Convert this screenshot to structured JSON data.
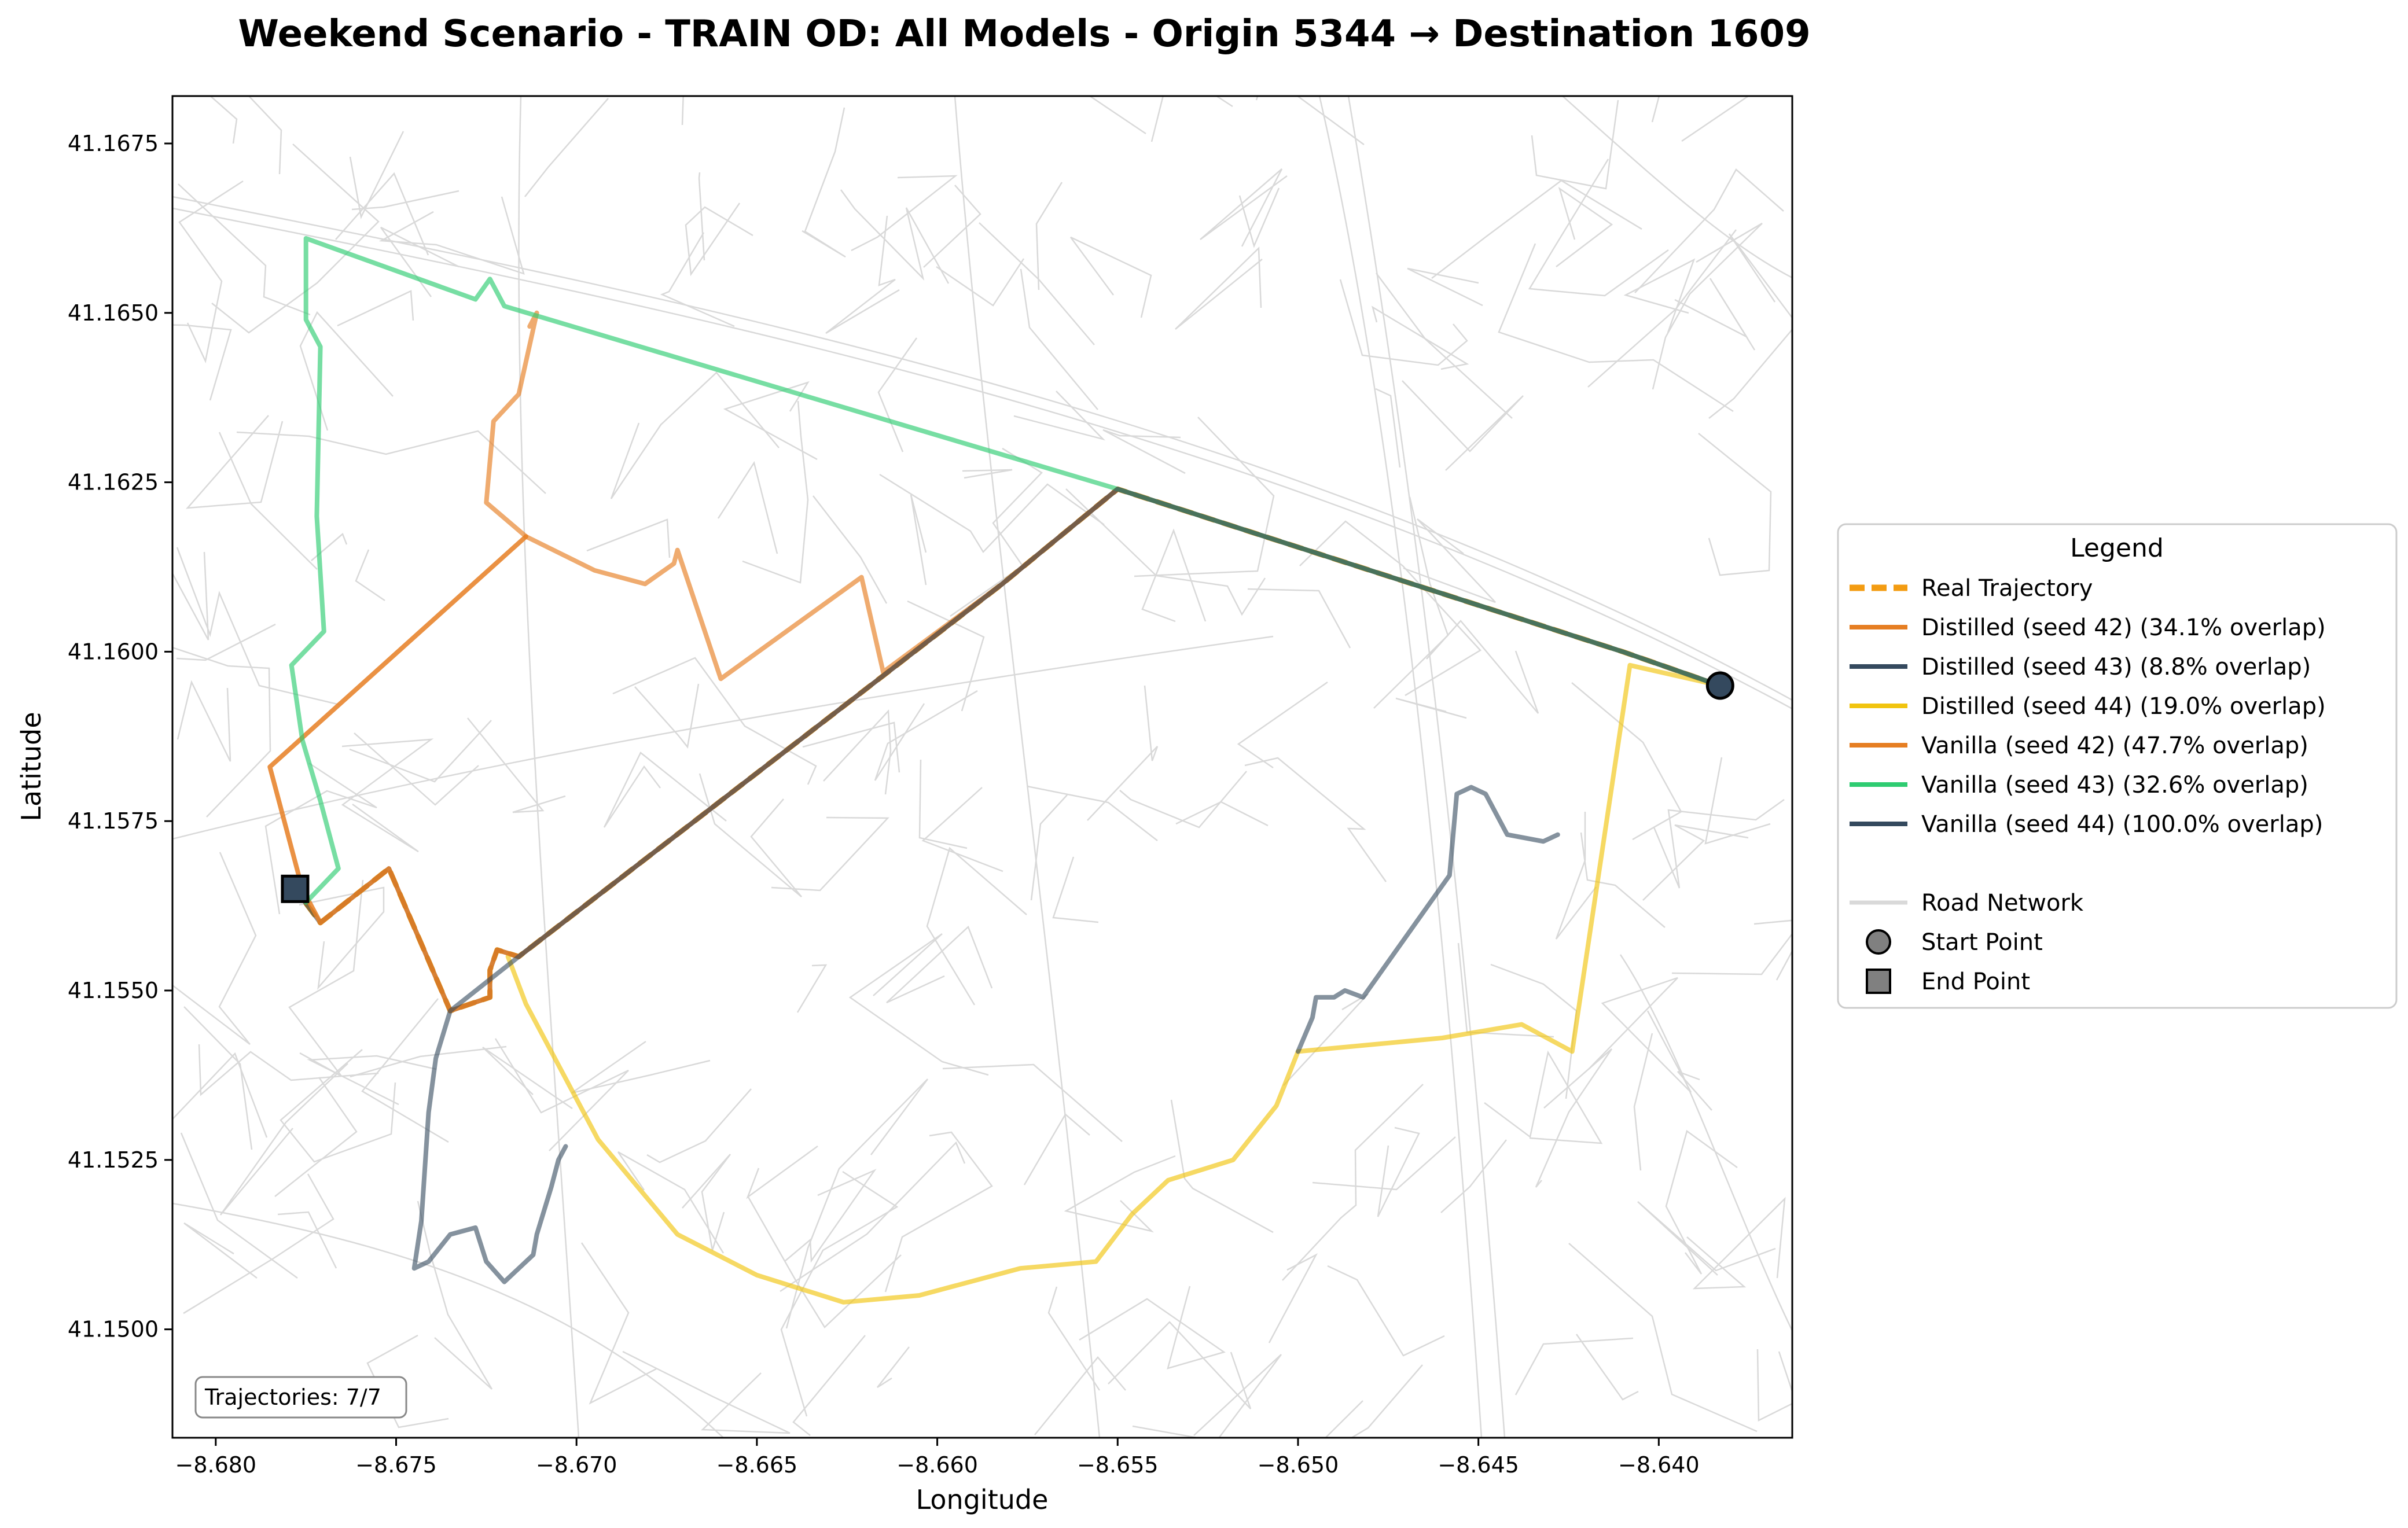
{
  "title": "Weekend Scenario - TRAIN OD: All Models - Origin 5344 → Destination 1609",
  "chart_data": {
    "type": "map",
    "xlabel": "Longitude",
    "ylabel": "Latitude",
    "xlim": [
      -8.6812,
      -8.6363
    ],
    "ylim": [
      41.1484,
      41.1682
    ],
    "xticks": [
      "−8.680",
      "−8.675",
      "−8.670",
      "−8.665",
      "−8.660",
      "−8.655",
      "−8.650",
      "−8.645",
      "−8.640"
    ],
    "xtick_values": [
      -8.68,
      -8.675,
      -8.67,
      -8.665,
      -8.66,
      -8.655,
      -8.65,
      -8.645,
      -8.64
    ],
    "yticks": [
      "41.1500",
      "41.1525",
      "41.1550",
      "41.1575",
      "41.1600",
      "41.1625",
      "41.1650",
      "41.1675"
    ],
    "ytick_values": [
      41.15,
      41.1525,
      41.155,
      41.1575,
      41.16,
      41.1625,
      41.165,
      41.1675
    ],
    "grid": false,
    "legend_title": "Legend",
    "legend_placement": "outside right",
    "annotation": "Trajectories: 7/7",
    "start_point": {
      "label": "Start Point",
      "lon": -8.6383,
      "lat": 41.1595
    },
    "end_point": {
      "label": "End Point",
      "lon": -8.6778,
      "lat": 41.1565
    },
    "road_network": {
      "label": "Road Network",
      "color": "#d9d9d9"
    },
    "series": [
      {
        "name": "Real Trajectory",
        "color": "#f39c12",
        "style": "dashed",
        "points": [
          [
            -8.6383,
            41.1595
          ],
          [
            -8.641,
            41.16
          ],
          [
            -8.655,
            41.1624
          ],
          [
            -8.6582,
            41.161
          ],
          [
            -8.6716,
            41.1555
          ],
          [
            -8.6722,
            41.1556
          ],
          [
            -8.6724,
            41.1553
          ],
          [
            -8.6724,
            41.1549
          ],
          [
            -8.6735,
            41.1547
          ],
          [
            -8.6752,
            41.1568
          ],
          [
            -8.6771,
            41.156
          ],
          [
            -8.6778,
            41.1565
          ]
        ]
      },
      {
        "name": "Distilled (seed 42) (34.1% overlap)",
        "color": "#e67e22",
        "style": "solid",
        "opacity": 0.65,
        "points": [
          [
            -8.6383,
            41.1595
          ],
          [
            -8.641,
            41.16
          ],
          [
            -8.655,
            41.1624
          ],
          [
            -8.6582,
            41.161
          ],
          [
            -8.6615,
            41.1597
          ],
          [
            -8.6621,
            41.1611
          ],
          [
            -8.666,
            41.1596
          ],
          [
            -8.6672,
            41.1615
          ],
          [
            -8.6673,
            41.1613
          ],
          [
            -8.6681,
            41.161
          ],
          [
            -8.6695,
            41.1612
          ],
          [
            -8.6714,
            41.1617
          ],
          [
            -8.6725,
            41.1622
          ],
          [
            -8.6723,
            41.1634
          ],
          [
            -8.6716,
            41.1638
          ],
          [
            -8.6711,
            41.165
          ],
          [
            -8.6713,
            41.1648
          ]
        ]
      },
      {
        "name": "Distilled (seed 43) (8.8% overlap)",
        "color": "#34495e",
        "style": "solid",
        "opacity": 0.6,
        "points": [
          [
            -8.6383,
            41.1595
          ],
          [
            -8.641,
            41.16
          ],
          [
            -8.655,
            41.1624
          ],
          [
            -8.6582,
            41.161
          ],
          [
            -8.6716,
            41.1555
          ],
          [
            -8.6722,
            41.1556
          ],
          [
            -8.6724,
            41.1553
          ],
          [
            -8.6724,
            41.1549
          ],
          [
            -8.6735,
            41.1547
          ],
          [
            -8.6752,
            41.1568
          ],
          [
            -8.6771,
            41.156
          ],
          [
            -8.6778,
            41.1565
          ]
        ]
      },
      {
        "name": "Distilled (seed 44) (19.0% overlap)",
        "color": "#f1c40f",
        "style": "solid",
        "opacity": 0.65,
        "points": [
          [
            -8.6383,
            41.1595
          ],
          [
            -8.6408,
            41.1598
          ],
          [
            -8.6424,
            41.1541
          ],
          [
            -8.6438,
            41.1545
          ],
          [
            -8.646,
            41.1543
          ],
          [
            -8.65,
            41.1541
          ],
          [
            -8.6506,
            41.1533
          ],
          [
            -8.6518,
            41.1525
          ],
          [
            -8.6536,
            41.1522
          ],
          [
            -8.6546,
            41.1517
          ],
          [
            -8.6556,
            41.151
          ],
          [
            -8.6577,
            41.1509
          ],
          [
            -8.6605,
            41.1505
          ],
          [
            -8.6626,
            41.1504
          ],
          [
            -8.665,
            41.1508
          ],
          [
            -8.6672,
            41.1514
          ],
          [
            -8.6694,
            41.1528
          ],
          [
            -8.6714,
            41.1548
          ],
          [
            -8.6719,
            41.1555
          ]
        ]
      },
      {
        "name": "Vanilla (seed 42) (47.7% overlap)",
        "color": "#e67e22",
        "style": "solid",
        "opacity": 0.85,
        "points": [
          [
            -8.6383,
            41.1595
          ],
          [
            -8.641,
            41.16
          ],
          [
            -8.655,
            41.1624
          ],
          [
            -8.6582,
            41.161
          ],
          [
            -8.6716,
            41.1555
          ],
          [
            -8.6722,
            41.1556
          ],
          [
            -8.6724,
            41.1553
          ],
          [
            -8.6724,
            41.1549
          ],
          [
            -8.6735,
            41.1547
          ],
          [
            -8.6752,
            41.1568
          ],
          [
            -8.6771,
            41.156
          ],
          [
            -8.6776,
            41.1565
          ],
          [
            -8.6785,
            41.1583
          ],
          [
            -8.6714,
            41.1617
          ]
        ]
      },
      {
        "name": "Vanilla (seed 43) (32.6% overlap)",
        "color": "#2ecc71",
        "style": "solid",
        "opacity": 0.65,
        "points": [
          [
            -8.6383,
            41.1595
          ],
          [
            -8.641,
            41.16
          ],
          [
            -8.655,
            41.1624
          ],
          [
            -8.672,
            41.1651
          ],
          [
            -8.6724,
            41.1655
          ],
          [
            -8.6728,
            41.1652
          ],
          [
            -8.6775,
            41.1661
          ],
          [
            -8.6775,
            41.1649
          ],
          [
            -8.6771,
            41.1645
          ],
          [
            -8.6772,
            41.162
          ],
          [
            -8.677,
            41.1603
          ],
          [
            -8.6779,
            41.1598
          ],
          [
            -8.6776,
            41.1587
          ],
          [
            -8.6771,
            41.1578
          ],
          [
            -8.6766,
            41.1568
          ],
          [
            -8.6775,
            41.1563
          ]
        ]
      },
      {
        "name": "Vanilla (seed 44) (100.0% overlap)",
        "color": "#34495e",
        "style": "solid",
        "opacity": 0.6,
        "points": [
          [
            -8.6383,
            41.1595
          ],
          [
            -8.641,
            41.16
          ],
          [
            -8.655,
            41.1624
          ],
          [
            -8.6582,
            41.161
          ],
          [
            -8.6716,
            41.1555
          ],
          [
            -8.6735,
            41.1547
          ],
          [
            -8.6739,
            41.154
          ],
          [
            -8.6741,
            41.1532
          ],
          [
            -8.6743,
            41.1516
          ],
          [
            -8.6745,
            41.1509
          ],
          [
            -8.6741,
            41.151
          ],
          [
            -8.6735,
            41.1514
          ],
          [
            -8.6728,
            41.1515
          ],
          [
            -8.6725,
            41.151
          ],
          [
            -8.672,
            41.1507
          ],
          [
            -8.6712,
            41.1511
          ],
          [
            -8.6711,
            41.1514
          ],
          [
            -8.6707,
            41.1521
          ],
          [
            -8.6705,
            41.1525
          ],
          [
            -8.6703,
            41.1527
          ]
        ]
      },
      {
        "name": "",
        "color": "#34495e",
        "style": "solid",
        "opacity": 0.6,
        "points": [
          [
            -8.65,
            41.1541
          ],
          [
            -8.6496,
            41.1546
          ],
          [
            -8.6495,
            41.1549
          ],
          [
            -8.649,
            41.1549
          ],
          [
            -8.6487,
            41.155
          ],
          [
            -8.6482,
            41.1549
          ],
          [
            -8.647,
            41.1558
          ],
          [
            -8.6458,
            41.1567
          ],
          [
            -8.6456,
            41.1579
          ],
          [
            -8.6452,
            41.158
          ],
          [
            -8.6448,
            41.1579
          ],
          [
            -8.6442,
            41.1573
          ],
          [
            -8.6432,
            41.1572
          ],
          [
            -8.6428,
            41.1573
          ]
        ]
      }
    ]
  }
}
